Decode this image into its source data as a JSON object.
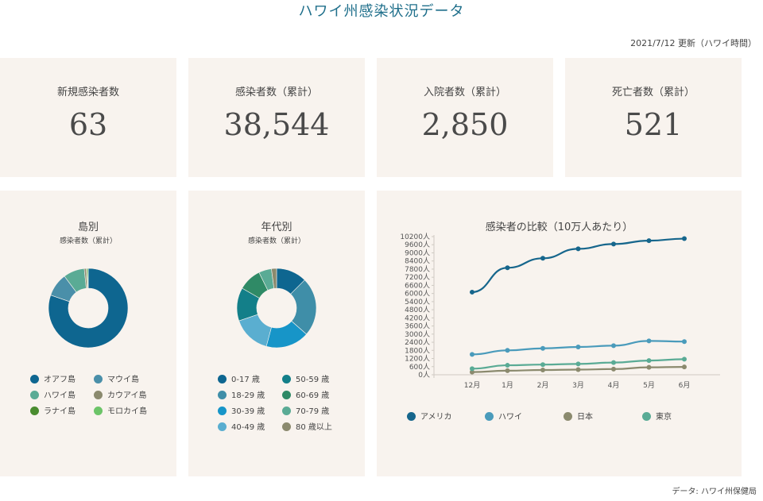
{
  "header": {
    "title": "ハワイ州感染状況データ",
    "updated": "2021/7/12 更新（ハワイ時間）"
  },
  "stats": [
    {
      "label": "新規感染者数",
      "value": "63"
    },
    {
      "label": "感染者数（累計）",
      "value": "38,544"
    },
    {
      "label": "入院者数（累計）",
      "value": "2,850"
    },
    {
      "label": "死亡者数（累計）",
      "value": "521"
    }
  ],
  "footer": {
    "source": "データ: ハワイ州保健局"
  },
  "chart_data": [
    {
      "type": "pie",
      "title": "島別",
      "subtitle": "感染者数（累計）",
      "donut": true,
      "categories": [
        "オアフ島",
        "マウイ島",
        "ハワイ島",
        "カウアイ島",
        "ラナイ島",
        "モロカイ島"
      ],
      "values": [
        80.3,
        9.5,
        8.6,
        0.8,
        0.4,
        0.4
      ],
      "colors": [
        "#0e6690",
        "#4a8fa9",
        "#5aab95",
        "#8b8a6e",
        "#4a8c2f",
        "#6cc468"
      ],
      "legend_position": "bottom"
    },
    {
      "type": "pie",
      "title": "年代別",
      "subtitle": "感染者数（累計）",
      "donut": true,
      "categories": [
        "0-17 歳",
        "18-29 歳",
        "30-39 歳",
        "40-49 歳",
        "50-59 歳",
        "60-69 歳",
        "70-79 歳",
        "80 歳以上"
      ],
      "values": [
        12,
        23,
        17,
        15,
        13,
        9,
        5,
        2
      ],
      "colors": [
        "#0e6690",
        "#3f8ea8",
        "#1795c8",
        "#5aaed0",
        "#137f89",
        "#2f8a66",
        "#5aab95",
        "#8b8a6e"
      ],
      "legend_position": "bottom"
    },
    {
      "type": "line",
      "title": "感染者の比較（10万人あたり）",
      "categories": [
        "12月",
        "1月",
        "2月",
        "3月",
        "4月",
        "5月",
        "6月"
      ],
      "y_ticks": [
        "0人",
        "600人",
        "1200人",
        "1800人",
        "2400人",
        "3000人",
        "3600人",
        "4200人",
        "4800人",
        "5400人",
        "6000人",
        "6600人",
        "7200人",
        "7800人",
        "8400人",
        "9000人",
        "9600人",
        "10200人"
      ],
      "ylim": [
        0,
        10200
      ],
      "series": [
        {
          "name": "アメリカ",
          "color": "#16668c",
          "values": [
            6100,
            7900,
            8600,
            9300,
            9650,
            9900,
            10050
          ]
        },
        {
          "name": "ハワイ",
          "color": "#4a9bbb",
          "values": [
            1500,
            1800,
            1950,
            2050,
            2150,
            2500,
            2450
          ]
        },
        {
          "name": "日本",
          "color": "#8b8a6e",
          "values": [
            200,
            300,
            350,
            380,
            420,
            550,
            580
          ]
        },
        {
          "name": "東京",
          "color": "#5aab95",
          "values": [
            450,
            700,
            750,
            800,
            900,
            1050,
            1150
          ]
        }
      ],
      "grid": false,
      "legend_position": "bottom"
    }
  ]
}
